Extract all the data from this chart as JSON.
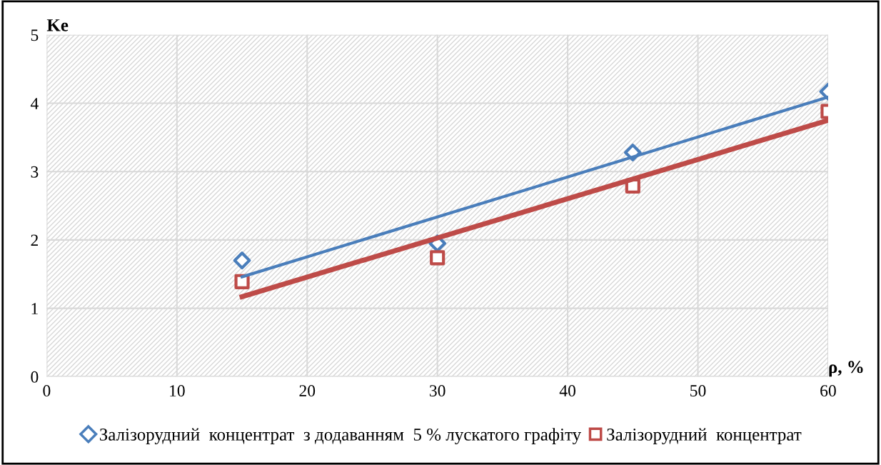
{
  "chart_data": {
    "type": "scatter",
    "xlabel": "ρ, %",
    "ylabel": "Ke",
    "xlim": [
      0,
      60
    ],
    "xticks": [
      0,
      10,
      20,
      30,
      40,
      50,
      60
    ],
    "ylim": [
      0,
      5
    ],
    "yticks": [
      0,
      1,
      2,
      3,
      4,
      5
    ],
    "grid": true,
    "legend": "bottom",
    "series": [
      {
        "name": "Залізорудний  концентрат  з додаванням  5 % лускатого графіту",
        "marker": "diamond",
        "color": "#4a7ebb",
        "x": [
          15,
          30,
          45,
          60
        ],
        "values": [
          1.7,
          1.95,
          3.28,
          4.17
        ]
      },
      {
        "name": "Залізорудний  концентрат",
        "marker": "square",
        "color": "#be4b48",
        "x": [
          15,
          30,
          45,
          60
        ],
        "values": [
          1.39,
          1.74,
          2.79,
          3.88
        ]
      },
      {
        "type": "line",
        "marker": "none",
        "color": "#4a7ebb",
        "x": [
          15,
          60
        ],
        "values": [
          1.46,
          4.09
        ]
      },
      {
        "type": "line",
        "marker": "none",
        "color": "#be4b48",
        "x": [
          15,
          60
        ],
        "values": [
          1.17,
          3.75
        ]
      }
    ]
  }
}
